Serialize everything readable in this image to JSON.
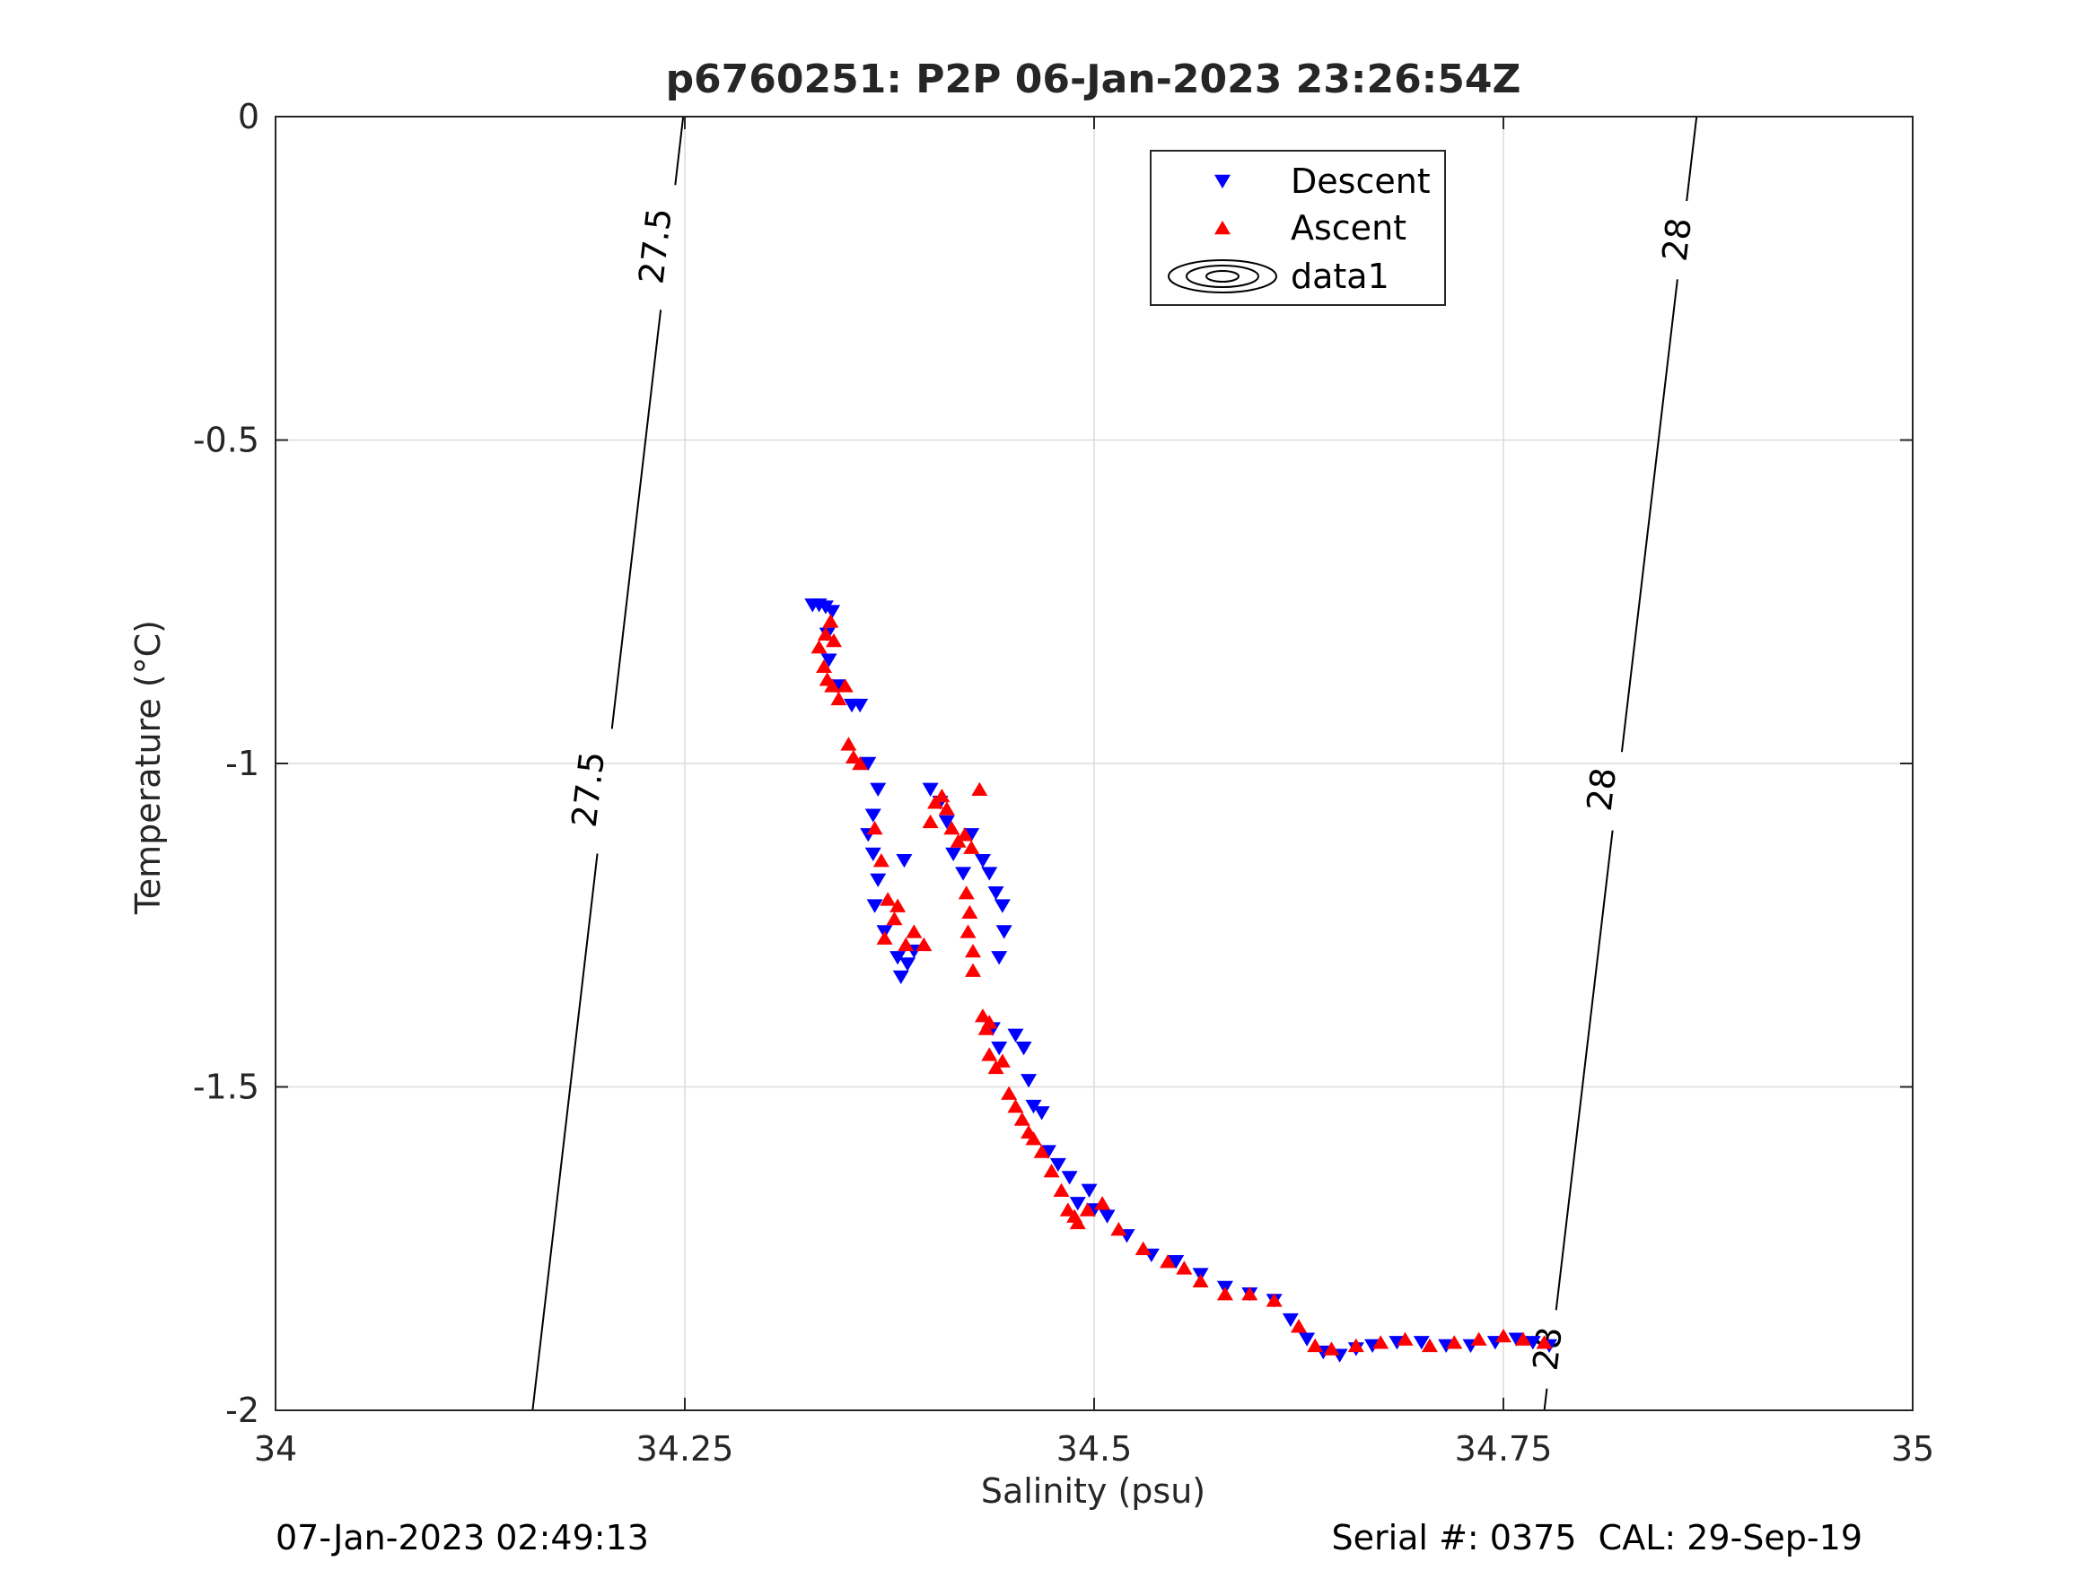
{
  "chart_data": {
    "type": "scatter",
    "title": "p6760251: P2P 06-Jan-2023 23:26:54Z",
    "xlabel": "Salinity (psu)",
    "ylabel": "Temperature (°C)",
    "xlim": [
      34,
      35
    ],
    "ylim": [
      -2,
      0
    ],
    "x_ticks": [
      34,
      34.25,
      34.5,
      34.75,
      35
    ],
    "x_tick_labels": [
      "34",
      "34.25",
      "34.5",
      "34.75",
      "35"
    ],
    "y_ticks": [
      0,
      -0.5,
      -1,
      -1.5,
      -2
    ],
    "y_tick_labels": [
      "0",
      "-0.5",
      "-1",
      "-1.5",
      "-2"
    ],
    "grid": true,
    "legend_position": "top-center",
    "series": [
      {
        "name": "Descent",
        "marker": "triangle-down",
        "color": "#0000ff",
        "points": [
          [
            34.328,
            -0.755
          ],
          [
            34.332,
            -0.755
          ],
          [
            34.336,
            -0.758
          ],
          [
            34.34,
            -0.765
          ],
          [
            34.337,
            -0.8
          ],
          [
            34.338,
            -0.84
          ],
          [
            34.343,
            -0.88
          ],
          [
            34.352,
            -0.91
          ],
          [
            34.357,
            -0.91
          ],
          [
            34.362,
            -1.0
          ],
          [
            34.368,
            -1.04
          ],
          [
            34.365,
            -1.08
          ],
          [
            34.362,
            -1.11
          ],
          [
            34.365,
            -1.14
          ],
          [
            34.368,
            -1.18
          ],
          [
            34.366,
            -1.22
          ],
          [
            34.372,
            -1.26
          ],
          [
            34.38,
            -1.3
          ],
          [
            34.382,
            -1.33
          ],
          [
            34.386,
            -1.31
          ],
          [
            34.39,
            -1.29
          ],
          [
            34.384,
            -1.15
          ],
          [
            34.4,
            -1.04
          ],
          [
            34.406,
            -1.06
          ],
          [
            34.41,
            -1.09
          ],
          [
            34.414,
            -1.14
          ],
          [
            34.42,
            -1.17
          ],
          [
            34.425,
            -1.11
          ],
          [
            34.432,
            -1.15
          ],
          [
            34.436,
            -1.17
          ],
          [
            34.44,
            -1.2
          ],
          [
            34.444,
            -1.22
          ],
          [
            34.445,
            -1.26
          ],
          [
            34.442,
            -1.3
          ],
          [
            34.438,
            -1.41
          ],
          [
            34.442,
            -1.44
          ],
          [
            34.452,
            -1.42
          ],
          [
            34.457,
            -1.44
          ],
          [
            34.46,
            -1.49
          ],
          [
            34.463,
            -1.53
          ],
          [
            34.468,
            -1.54
          ],
          [
            34.472,
            -1.6
          ],
          [
            34.478,
            -1.62
          ],
          [
            34.485,
            -1.64
          ],
          [
            34.49,
            -1.68
          ],
          [
            34.497,
            -1.66
          ],
          [
            34.5,
            -1.69
          ],
          [
            34.508,
            -1.7
          ],
          [
            34.52,
            -1.73
          ],
          [
            34.535,
            -1.76
          ],
          [
            34.55,
            -1.77
          ],
          [
            34.565,
            -1.79
          ],
          [
            34.58,
            -1.81
          ],
          [
            34.595,
            -1.82
          ],
          [
            34.61,
            -1.83
          ],
          [
            34.62,
            -1.86
          ],
          [
            34.63,
            -1.89
          ],
          [
            34.64,
            -1.91
          ],
          [
            34.65,
            -1.915
          ],
          [
            34.66,
            -1.905
          ],
          [
            34.67,
            -1.9
          ],
          [
            34.685,
            -1.895
          ],
          [
            34.7,
            -1.895
          ],
          [
            34.715,
            -1.9
          ],
          [
            34.73,
            -1.9
          ],
          [
            34.745,
            -1.895
          ],
          [
            34.758,
            -1.89
          ],
          [
            34.768,
            -1.895
          ],
          [
            34.778,
            -1.9
          ]
        ]
      },
      {
        "name": "Ascent",
        "marker": "triangle-up",
        "color": "#ff0000",
        "points": [
          [
            34.332,
            -0.82
          ],
          [
            34.336,
            -0.8
          ],
          [
            34.339,
            -0.78
          ],
          [
            34.341,
            -0.81
          ],
          [
            34.335,
            -0.85
          ],
          [
            34.337,
            -0.87
          ],
          [
            34.34,
            -0.88
          ],
          [
            34.344,
            -0.9
          ],
          [
            34.348,
            -0.88
          ],
          [
            34.35,
            -0.97
          ],
          [
            34.353,
            -0.99
          ],
          [
            34.357,
            -1.0
          ],
          [
            34.366,
            -1.1
          ],
          [
            34.37,
            -1.15
          ],
          [
            34.374,
            -1.21
          ],
          [
            34.378,
            -1.24
          ],
          [
            34.38,
            -1.22
          ],
          [
            34.372,
            -1.27
          ],
          [
            34.385,
            -1.28
          ],
          [
            34.39,
            -1.26
          ],
          [
            34.396,
            -1.28
          ],
          [
            34.4,
            -1.09
          ],
          [
            34.403,
            -1.06
          ],
          [
            34.407,
            -1.05
          ],
          [
            34.41,
            -1.07
          ],
          [
            34.413,
            -1.1
          ],
          [
            34.417,
            -1.12
          ],
          [
            34.421,
            -1.11
          ],
          [
            34.425,
            -1.13
          ],
          [
            34.422,
            -1.2
          ],
          [
            34.424,
            -1.23
          ],
          [
            34.423,
            -1.26
          ],
          [
            34.426,
            -1.29
          ],
          [
            34.426,
            -1.32
          ],
          [
            34.43,
            -1.04
          ],
          [
            34.432,
            -1.39
          ],
          [
            34.434,
            -1.41
          ],
          [
            34.436,
            -1.4
          ],
          [
            34.436,
            -1.45
          ],
          [
            34.44,
            -1.47
          ],
          [
            34.444,
            -1.46
          ],
          [
            34.448,
            -1.51
          ],
          [
            34.452,
            -1.53
          ],
          [
            34.456,
            -1.55
          ],
          [
            34.46,
            -1.57
          ],
          [
            34.463,
            -1.58
          ],
          [
            34.468,
            -1.6
          ],
          [
            34.474,
            -1.63
          ],
          [
            34.48,
            -1.66
          ],
          [
            34.484,
            -1.69
          ],
          [
            34.488,
            -1.7
          ],
          [
            34.49,
            -1.71
          ],
          [
            34.496,
            -1.69
          ],
          [
            34.505,
            -1.68
          ],
          [
            34.515,
            -1.72
          ],
          [
            34.53,
            -1.75
          ],
          [
            34.545,
            -1.77
          ],
          [
            34.555,
            -1.78
          ],
          [
            34.565,
            -1.8
          ],
          [
            34.58,
            -1.82
          ],
          [
            34.595,
            -1.82
          ],
          [
            34.61,
            -1.83
          ],
          [
            34.625,
            -1.87
          ],
          [
            34.635,
            -1.9
          ],
          [
            34.645,
            -1.905
          ],
          [
            34.66,
            -1.9
          ],
          [
            34.675,
            -1.895
          ],
          [
            34.69,
            -1.89
          ],
          [
            34.705,
            -1.9
          ],
          [
            34.72,
            -1.895
          ],
          [
            34.735,
            -1.89
          ],
          [
            34.75,
            -1.885
          ],
          [
            34.762,
            -1.89
          ],
          [
            34.775,
            -1.895
          ]
        ]
      },
      {
        "name": "data1",
        "marker": "contour",
        "color": "#000000",
        "contours": [
          {
            "level_label": "27.5",
            "points": [
              [
                34.249,
                0
              ],
              [
                34.157,
                -2
              ]
            ],
            "label_at": [
              [
                34.232,
                -0.2
              ],
              [
                34.191,
                -1.04
              ]
            ]
          },
          {
            "level_label": "28",
            "points": [
              [
                34.868,
                0
              ],
              [
                34.775,
                -2
              ]
            ],
            "label_at": [
              [
                34.856,
                -0.19
              ],
              [
                34.81,
                -1.04
              ],
              [
                34.777,
                -1.905
              ]
            ]
          }
        ]
      }
    ]
  },
  "footer": {
    "timestamp": "07-Jan-2023 02:49:13",
    "serial_cal": "Serial #: 0375  CAL: 29-Sep-19"
  }
}
